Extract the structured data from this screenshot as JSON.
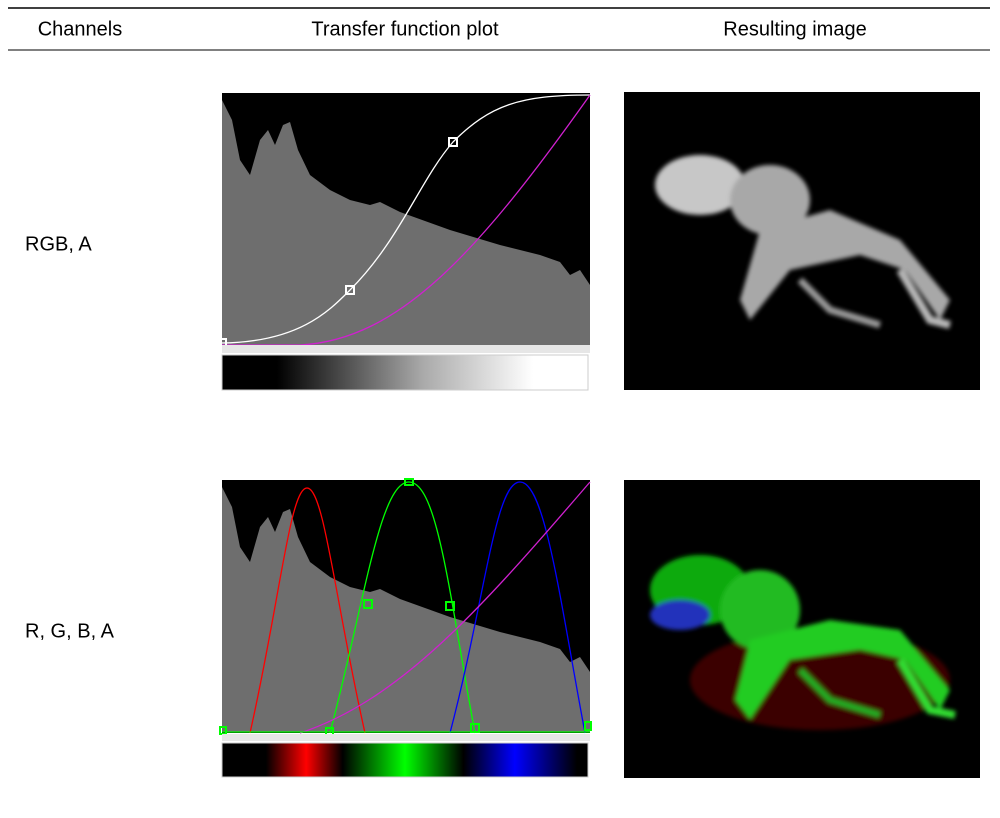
{
  "table": {
    "headers": [
      "Channels",
      "Transfer function plot",
      "Resulting image"
    ],
    "rows": [
      [
        "RGB, A"
      ],
      [
        "R, G, B, A"
      ]
    ]
  }
}
